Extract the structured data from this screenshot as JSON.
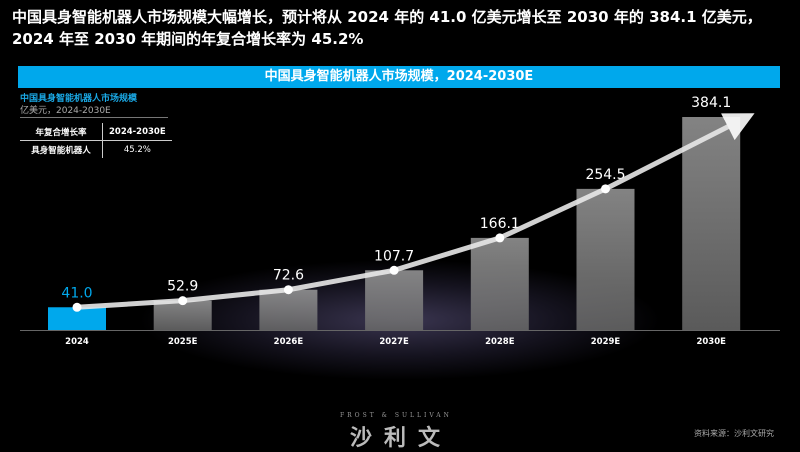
{
  "headline": "中国具身智能机器人市场规模大幅增长，预计将从 2024 年的 41.0 亿美元增长至 2030 年的 384.1 亿美元，2024 年至 2030 年期间的年复合增长率为 45.2%",
  "banner": "中国具身智能机器人市场规模，2024-2030E",
  "subtitle": "中国具身智能机器人市场规模",
  "unit": "亿美元，2024-2030E",
  "cagr_table": {
    "header": [
      "年复合增长率",
      "2024-2030E"
    ],
    "row": [
      "具身智能机器人",
      "45.2%"
    ]
  },
  "chart_data": {
    "type": "bar",
    "title": "中国具身智能机器人市场规模，2024-2030E",
    "ylabel": "亿美元",
    "categories": [
      "2024",
      "2025E",
      "2026E",
      "2027E",
      "2028E",
      "2029E",
      "2030E"
    ],
    "values": [
      41.0,
      52.9,
      72.6,
      107.7,
      166.1,
      254.5,
      384.1
    ],
    "labels": [
      "41.0",
      "52.9",
      "72.6",
      "107.7",
      "166.1",
      "254.5",
      "384.1"
    ],
    "ylim": [
      0,
      400
    ],
    "grid": false,
    "colors": {
      "highlight": "#00a8ec",
      "bar": "#8a8a8a",
      "trend": "#ffffff"
    },
    "trend_arrow": true
  },
  "logo": {
    "en": "FROST & SULLIVAN",
    "cn": "沙利文"
  },
  "source": "资料来源：沙利文研究"
}
